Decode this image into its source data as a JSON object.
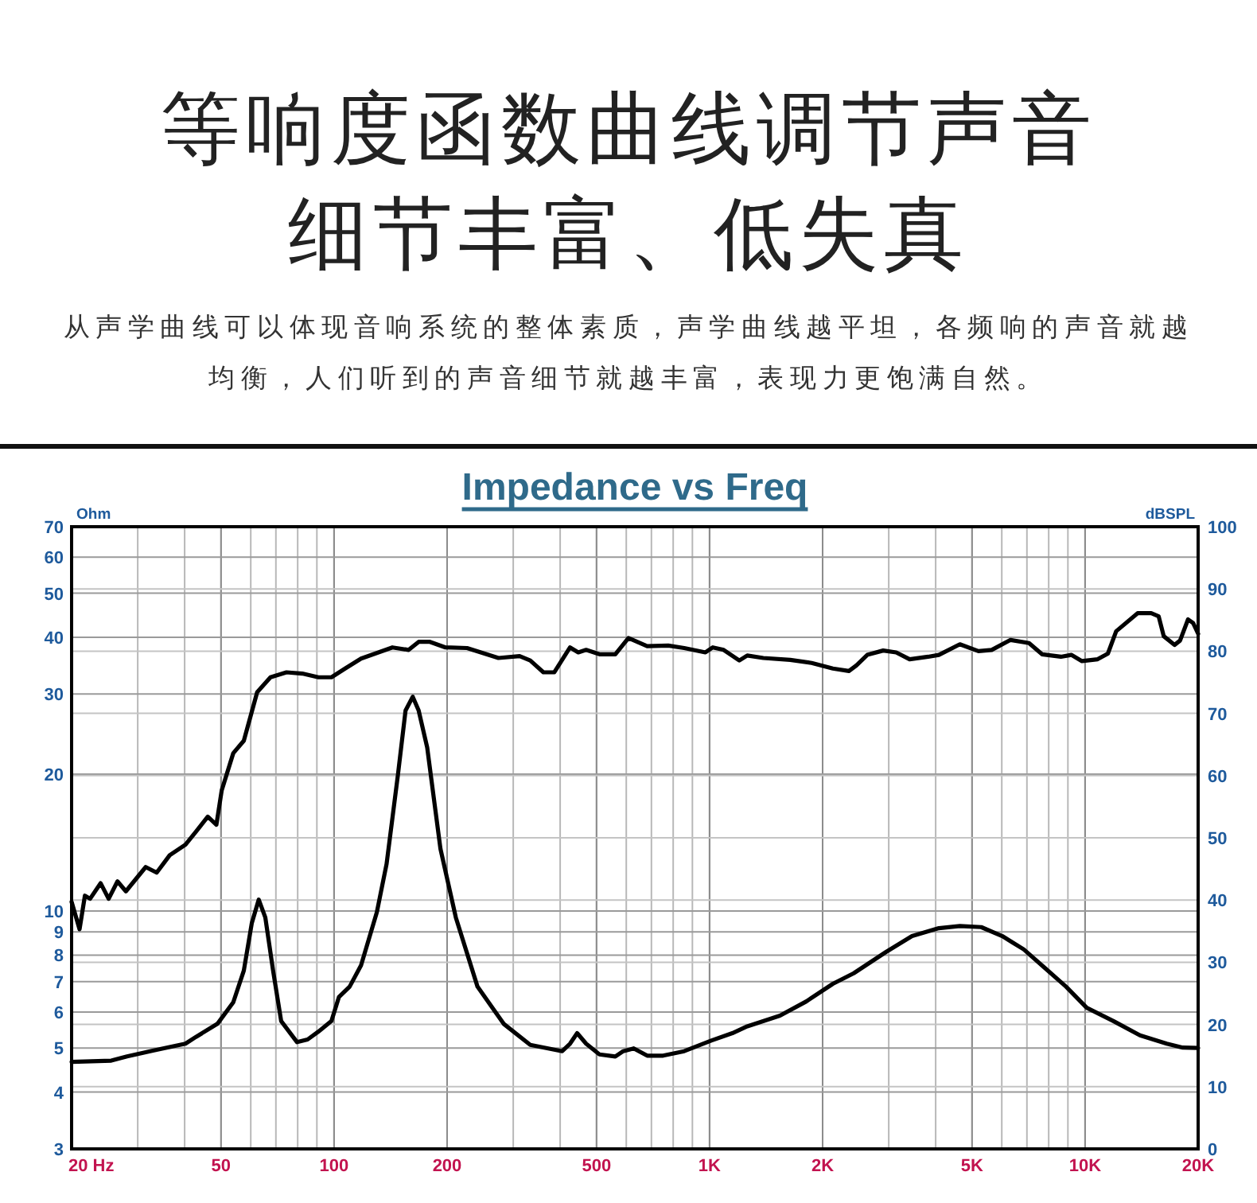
{
  "chart_data": {
    "type": "line",
    "title": "Impedance vs Freq",
    "annotations": [
      "等响度函数曲线调节声音细节丰富、低失真",
      "从声学曲线可以体现音响系统的整体素质，声学曲线越平坦，各频响的声音就越均衡，人们听到的声音细节就越丰富，表现力更饱满自然。"
    ],
    "ylabel": "Ohm",
    "y2label": "dBSPL",
    "log": "xy",
    "grid": true,
    "xlim": [
      20,
      20000
    ],
    "xticks": [
      {
        "value": 20,
        "label": "20 Hz"
      },
      50,
      100,
      200,
      500,
      {
        "value": 1000,
        "label": "1K"
      },
      {
        "value": 2000,
        "label": "2K"
      },
      {
        "value": 5000,
        "label": "5K"
      },
      {
        "value": 10000,
        "label": "10K"
      },
      {
        "value": 20000,
        "label": "20K"
      }
    ],
    "ylim": [
      3,
      70
    ],
    "yticks": [
      3,
      4,
      5,
      6,
      7,
      8,
      9,
      10,
      20,
      30,
      40,
      50,
      60,
      70
    ],
    "y2lim": [
      0,
      100
    ],
    "y2ticks": [
      0,
      10,
      20,
      30,
      40,
      50,
      60,
      70,
      80,
      90,
      100
    ],
    "series": [
      {
        "axis": "y2",
        "color": "#000000",
        "x": [
          20,
          21,
          21.7,
          22.4,
          23.9,
          25.1,
          26.5,
          27.9,
          31.5,
          33.7,
          36.5,
          40.2,
          42.9,
          46.1,
          48.6,
          50.2,
          53.9,
          57.5,
          62.4,
          67.7,
          74.7,
          82.3,
          90.8,
          98.4,
          107,
          118,
          143,
          158,
          168,
          180,
          198,
          226,
          274,
          312,
          333,
          361,
          386,
          425,
          447,
          469,
          509,
          561,
          608,
          682,
          776,
          856,
          975,
          1020,
          1090,
          1200,
          1260,
          1390,
          1640,
          1870,
          2130,
          2350,
          2460,
          2630,
          2900,
          3140,
          3410,
          3820,
          4080,
          4640,
          5200,
          5640,
          6330,
          7090,
          7680,
          8620,
          9190,
          9810,
          10800,
          11500,
          12100,
          13800,
          15000,
          15700,
          16200,
          17300,
          17900,
          18800,
          19400,
          20000
        ],
        "values": [
          39.7,
          35.3,
          40.7,
          40.2,
          42.7,
          40.2,
          43.0,
          41.4,
          45.3,
          44.4,
          47.2,
          48.9,
          51.0,
          53.4,
          52.1,
          57.6,
          63.6,
          65.6,
          73.4,
          75.8,
          76.6,
          76.4,
          75.8,
          75.8,
          77.2,
          78.8,
          80.6,
          80.2,
          81.5,
          81.5,
          80.6,
          80.5,
          78.9,
          79.2,
          78.5,
          76.6,
          76.6,
          80.6,
          79.8,
          80.2,
          79.5,
          79.5,
          82.1,
          80.8,
          80.9,
          80.5,
          79.8,
          80.6,
          80.2,
          78.5,
          79.3,
          78.9,
          78.6,
          78.1,
          77.2,
          76.8,
          77.7,
          79.4,
          80.1,
          79.8,
          78.7,
          79.1,
          79.4,
          81.1,
          80.0,
          80.2,
          81.8,
          81.3,
          79.5,
          79.1,
          79.4,
          78.4,
          78.7,
          79.6,
          83.2,
          86.1,
          86.1,
          85.6,
          82.4,
          81.0,
          81.7,
          85.1,
          84.5,
          82.8
        ]
      },
      {
        "color": "#000000",
        "x": [
          20,
          25.5,
          28.1,
          33.1,
          40.2,
          42.9,
          48.9,
          53.9,
          57.5,
          60.4,
          63.0,
          65.6,
          68.8,
          72.3,
          79.7,
          85.0,
          90.8,
          98.4,
          103,
          110,
          118,
          130,
          138,
          148,
          155,
          162,
          168,
          177,
          192,
          211,
          241,
          283,
          333,
          405,
          425,
          444,
          469,
          509,
          561,
          589,
          628,
          682,
          752,
          856,
          1010,
          1150,
          1260,
          1540,
          1810,
          2130,
          2420,
          2950,
          3460,
          4080,
          4640,
          5290,
          6020,
          6860,
          7810,
          8900,
          10100,
          11900,
          14000,
          16500,
          18200,
          20000
        ],
        "values": [
          4.66,
          4.69,
          4.79,
          4.94,
          5.11,
          5.29,
          5.65,
          6.3,
          7.4,
          9.42,
          10.6,
          9.68,
          7.4,
          5.73,
          5.15,
          5.22,
          5.43,
          5.73,
          6.47,
          6.82,
          7.6,
          9.94,
          12.7,
          20.0,
          27.6,
          29.6,
          27.6,
          22.9,
          13.7,
          9.68,
          6.82,
          5.65,
          5.08,
          4.92,
          5.11,
          5.39,
          5.11,
          4.84,
          4.79,
          4.92,
          4.99,
          4.81,
          4.81,
          4.92,
          5.19,
          5.39,
          5.58,
          5.89,
          6.33,
          6.92,
          7.3,
          8.13,
          8.81,
          9.17,
          9.27,
          9.22,
          8.81,
          8.24,
          7.5,
          6.82,
          6.13,
          5.73,
          5.33,
          5.11,
          5.01,
          5.0
        ]
      }
    ]
  }
}
